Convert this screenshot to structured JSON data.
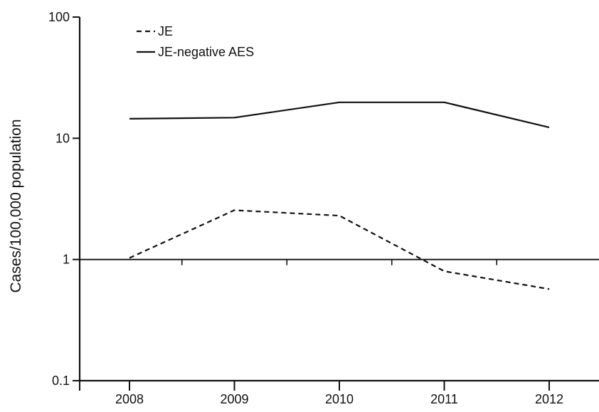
{
  "chart_data": {
    "type": "line",
    "title": "",
    "xlabel": "",
    "ylabel": "Cases/100,000 population",
    "yscale": "log",
    "ylim": [
      0.1,
      100
    ],
    "xlim": [
      2007.5,
      2012.5
    ],
    "yticks": [
      {
        "value": 0.1,
        "label": "0.1"
      },
      {
        "value": 1,
        "label": "1"
      },
      {
        "value": 10,
        "label": "10"
      },
      {
        "value": 100,
        "label": "100"
      }
    ],
    "x": [
      2008,
      2009,
      2010,
      2011,
      2012
    ],
    "xtick_labels": [
      "2008",
      "2009",
      "2010",
      "2011",
      "2012"
    ],
    "reference_line": {
      "y": 1
    },
    "grid": false,
    "legend_position": "top-left",
    "series": [
      {
        "name": "JE",
        "style": "dashed",
        "color": "#111111",
        "values": [
          1.03,
          2.55,
          2.3,
          0.8,
          0.57
        ]
      },
      {
        "name": "JE-negative AES",
        "style": "solid",
        "color": "#111111",
        "values": [
          14.5,
          14.8,
          19.8,
          19.8,
          12.3
        ]
      }
    ]
  }
}
